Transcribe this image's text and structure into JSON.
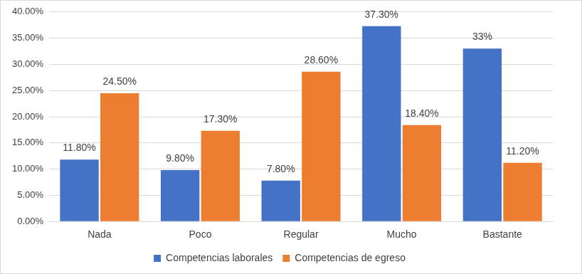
{
  "chart_data": {
    "type": "bar",
    "categories": [
      "Nada",
      "Poco",
      "Regular",
      "Mucho",
      "Bastante"
    ],
    "series": [
      {
        "name": "Competencias laborales",
        "color": "#4472c4",
        "values": [
          11.8,
          9.8,
          7.8,
          37.3,
          33
        ],
        "value_labels": [
          "11.80%",
          "9.80%",
          "7.80%",
          "37.30%",
          "33%"
        ]
      },
      {
        "name": "Competencias de egreso",
        "color": "#ed7d31",
        "values": [
          24.5,
          17.3,
          28.6,
          18.4,
          11.2
        ],
        "value_labels": [
          "24.50%",
          "17.30%",
          "28.60%",
          "18.40%",
          "11.20%"
        ]
      }
    ],
    "ylim": [
      0,
      40
    ],
    "yticks": [
      {
        "value": 0,
        "label": "0.00%"
      },
      {
        "value": 5,
        "label": "5.00%"
      },
      {
        "value": 10,
        "label": "10.00%"
      },
      {
        "value": 15,
        "label": "15.00%"
      },
      {
        "value": 20,
        "label": "20.00%"
      },
      {
        "value": 25,
        "label": "25.00%"
      },
      {
        "value": 30,
        "label": "30.00%"
      },
      {
        "value": 35,
        "label": "35.00%"
      },
      {
        "value": 40,
        "label": "40.00%"
      }
    ],
    "grid": true,
    "legend": "bottom",
    "data_labels": true
  }
}
